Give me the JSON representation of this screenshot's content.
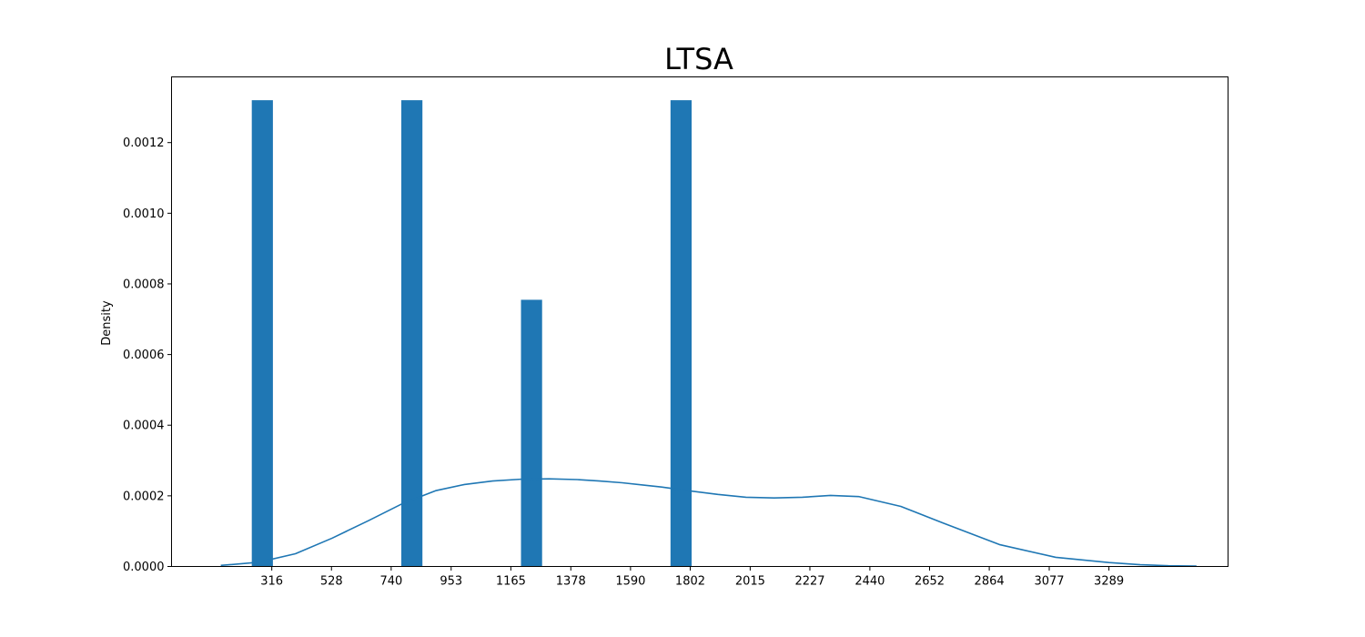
{
  "chart_data": {
    "type": "bar",
    "title": "LTSA",
    "xlabel": "",
    "ylabel": "Density",
    "xlim": [
      -40,
      3712
    ],
    "ylim": [
      0,
      0.001386
    ],
    "grid": false,
    "bar_color": "#1f77b4",
    "line_color": "#1f77b4",
    "x_ticks": [
      316,
      528,
      740,
      953,
      1165,
      1378,
      1590,
      1802,
      2015,
      2227,
      2440,
      2652,
      2864,
      3077,
      3289
    ],
    "x_tick_labels": [
      "316",
      "528",
      "740",
      "953",
      "1165",
      "1378",
      "1590",
      "1802",
      "2015",
      "2227",
      "2440",
      "2652",
      "2864",
      "3077",
      "3289"
    ],
    "y_ticks": [
      0,
      0.0002,
      0.0004,
      0.0006,
      0.0008,
      0.001,
      0.0012
    ],
    "y_tick_labels": [
      "0.0000",
      "0.0002",
      "0.0004",
      "0.0006",
      "0.0008",
      "0.0010",
      "0.0012"
    ],
    "bars": [
      {
        "x0": 245,
        "x1": 320,
        "value": 0.00132
      },
      {
        "x0": 776,
        "x1": 851,
        "value": 0.00132
      },
      {
        "x0": 1201,
        "x1": 1276,
        "value": 0.000755
      },
      {
        "x0": 1732,
        "x1": 1807,
        "value": 0.00132
      }
    ],
    "density_line": {
      "x": [
        135,
        270,
        400,
        530,
        660,
        780,
        900,
        1000,
        1100,
        1200,
        1300,
        1400,
        1480,
        1560,
        1640,
        1700,
        1800,
        1900,
        2000,
        2100,
        2200,
        2300,
        2400,
        2550,
        2700,
        2900,
        3100,
        3289,
        3400,
        3500,
        3600
      ],
      "y": [
        3e-06,
        1.2e-05,
        3.6e-05,
        8e-05,
        0.00013,
        0.000178,
        0.000215,
        0.000232,
        0.000242,
        0.000247,
        0.000248,
        0.000246,
        0.000242,
        0.000237,
        0.00023,
        0.000225,
        0.000214,
        0.000204,
        0.000196,
        0.000194,
        0.000196,
        0.000201,
        0.000198,
        0.00017,
        0.000123,
        6.2e-05,
        2.6e-05,
        1.1e-05,
        5e-06,
        2e-06,
        1e-06
      ]
    }
  }
}
